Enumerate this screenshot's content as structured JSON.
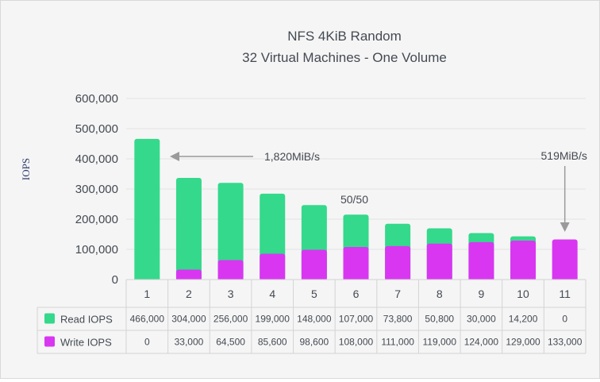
{
  "chart_data": {
    "type": "bar",
    "stacked": true,
    "title": "NFS 4KiB Random",
    "subtitle": "32 Virtual Machines - One Volume",
    "ylabel": "IOPS",
    "xlabel": "",
    "ylim": [
      0,
      600000
    ],
    "yticks": [
      "0",
      "100,000",
      "200,000",
      "300,000",
      "400,000",
      "500,000",
      "600,000"
    ],
    "grid": true,
    "legend_placement": "data-table-left",
    "categories": [
      "1",
      "2",
      "3",
      "4",
      "5",
      "6",
      "7",
      "8",
      "9",
      "10",
      "11"
    ],
    "series": [
      {
        "name": "Read IOPS",
        "color": "#34d98b",
        "values": [
          466000,
          304000,
          256000,
          199000,
          148000,
          107000,
          73800,
          50800,
          30000,
          14200,
          0
        ],
        "labels": [
          "466,000",
          "304,000",
          "256,000",
          "199,000",
          "148,000",
          "107,000",
          "73,800",
          "50,800",
          "30,000",
          "14,200",
          "0"
        ]
      },
      {
        "name": "Write IOPS",
        "color": "#d936f2",
        "values": [
          0,
          33000,
          64500,
          85600,
          98600,
          108000,
          111000,
          119000,
          124000,
          129000,
          133000
        ],
        "labels": [
          "0",
          "33,000",
          "64,500",
          "85,600",
          "98,600",
          "108,000",
          "111,000",
          "119,000",
          "124,000",
          "129,000",
          "133,000"
        ]
      }
    ],
    "annotations": [
      {
        "text": "1,820MiB/s",
        "category": "1",
        "arrow": "left"
      },
      {
        "text": "50/50",
        "category": "6"
      },
      {
        "text": "519MiB/s",
        "category": "11",
        "arrow": "down"
      }
    ]
  }
}
